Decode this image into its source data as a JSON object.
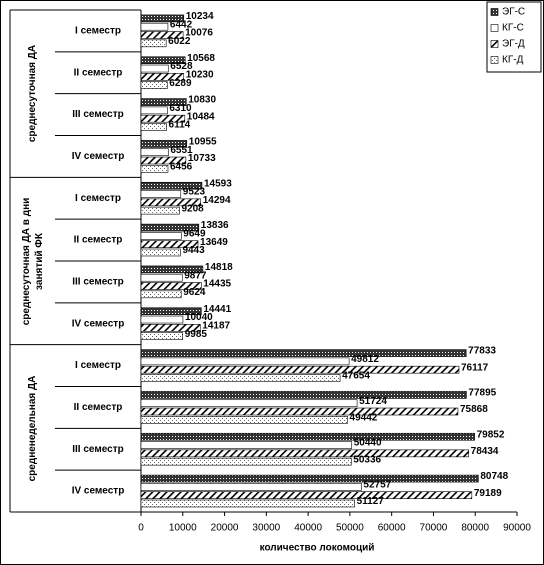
{
  "chart_data": {
    "type": "bar",
    "orientation": "horizontal",
    "category_groups": [
      "среднесуточная ДА",
      "среднесуточная ДА в дни занятий ФК",
      "средненедельная ДА"
    ],
    "categories": [
      "I семестр",
      "II семестр",
      "III семестр",
      "IV семестр",
      "I семестр",
      "II семестр",
      "III семестр",
      "IV семестр",
      "I семестр",
      "II семестр",
      "III семестр",
      "IV семестр"
    ],
    "series": [
      {
        "name": "ЭГ-С",
        "values": [
          10234,
          10568,
          10830,
          10955,
          14593,
          13836,
          14818,
          14441,
          77833,
          77895,
          79852,
          80748
        ]
      },
      {
        "name": "КГ-С",
        "values": [
          6442,
          6528,
          6310,
          6551,
          9523,
          9649,
          9877,
          10040,
          49812,
          51724,
          50440,
          52757
        ]
      },
      {
        "name": "ЭГ-Д",
        "values": [
          10076,
          10230,
          10484,
          10733,
          14294,
          13649,
          14435,
          14187,
          76117,
          75868,
          78434,
          79189
        ]
      },
      {
        "name": "КГ-Д",
        "values": [
          6022,
          6289,
          6114,
          6456,
          9208,
          9443,
          9624,
          9985,
          47654,
          49442,
          50336,
          51127
        ]
      }
    ],
    "xlabel": "количество локомоций",
    "xlim": [
      0,
      90000
    ],
    "xticks": [
      0,
      10000,
      20000,
      30000,
      40000,
      50000,
      60000,
      70000,
      80000,
      90000
    ],
    "legend": "upper right"
  }
}
